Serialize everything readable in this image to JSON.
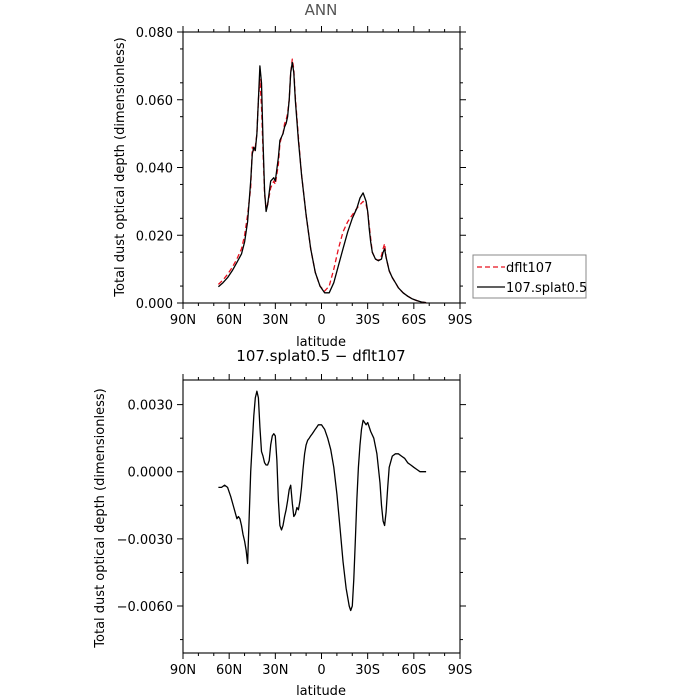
{
  "chart_data": [
    {
      "type": "line",
      "title": "ANN",
      "xlabel": "latitude",
      "ylabel": "Total dust optical depth (dimensionless)",
      "xlim": [
        90,
        -90
      ],
      "ylim": [
        0.0,
        0.08
      ],
      "xticks": [
        90,
        60,
        30,
        0,
        -30,
        -60,
        -90
      ],
      "xtick_labels": [
        "90N",
        "60N",
        "30N",
        "0",
        "30S",
        "60S",
        "90S"
      ],
      "yticks": [
        0.0,
        0.02,
        0.04,
        0.06,
        0.08
      ],
      "ytick_labels": [
        "0.000",
        "0.020",
        "0.040",
        "0.060",
        "0.080"
      ],
      "legend_position": "right",
      "series": [
        {
          "name": "dflt107",
          "color": "#e8101e",
          "dash": "dashed",
          "x": [
            67,
            64,
            61,
            58,
            55,
            52,
            50,
            48,
            46,
            45,
            44,
            43,
            42,
            41,
            40,
            39,
            38,
            37,
            36,
            35,
            33,
            31,
            30,
            28,
            27,
            26,
            25,
            24,
            23,
            22,
            21,
            20,
            19,
            18,
            17,
            15,
            13,
            10,
            7,
            4,
            1,
            -2,
            -5,
            -8,
            -11,
            -14,
            -17,
            -20,
            -23,
            -25,
            -27,
            -29,
            -30,
            -31,
            -32,
            -33,
            -35,
            -37,
            -39,
            -40,
            -41,
            -42,
            -44,
            -46,
            -48,
            -50,
            -53,
            -56,
            -59,
            -62,
            -65,
            -68
          ],
          "y": [
            0.0055,
            0.0068,
            0.0085,
            0.0105,
            0.013,
            0.016,
            0.02,
            0.026,
            0.034,
            0.046,
            0.045,
            0.046,
            0.05,
            0.06,
            0.066,
            0.058,
            0.045,
            0.032,
            0.028,
            0.029,
            0.034,
            0.036,
            0.035,
            0.041,
            0.047,
            0.049,
            0.05,
            0.053,
            0.054,
            0.056,
            0.06,
            0.068,
            0.072,
            0.069,
            0.061,
            0.049,
            0.038,
            0.026,
            0.016,
            0.009,
            0.005,
            0.0035,
            0.005,
            0.01,
            0.016,
            0.021,
            0.024,
            0.026,
            0.028,
            0.029,
            0.03,
            0.029,
            0.027,
            0.023,
            0.019,
            0.015,
            0.013,
            0.0125,
            0.014,
            0.016,
            0.0175,
            0.0135,
            0.0095,
            0.0075,
            0.006,
            0.0045,
            0.003,
            0.002,
            0.0012,
            0.0007,
            0.0003,
            0.0001
          ]
        },
        {
          "name": "107.splat0.5",
          "color": "#000000",
          "dash": "solid",
          "x": [
            67,
            64,
            61,
            58,
            55,
            52,
            50,
            48,
            46,
            45,
            44,
            43,
            42,
            41,
            40,
            39,
            38,
            37,
            36,
            35,
            33,
            31,
            30,
            28,
            27,
            26,
            25,
            24,
            23,
            22,
            21,
            20,
            19,
            18,
            17,
            15,
            13,
            10,
            7,
            4,
            1,
            -2,
            -5,
            -8,
            -11,
            -14,
            -17,
            -20,
            -23,
            -25,
            -27,
            -29,
            -30,
            -31,
            -32,
            -33,
            -35,
            -37,
            -39,
            -40,
            -41,
            -42,
            -44,
            -46,
            -48,
            -50,
            -53,
            -56,
            -59,
            -62,
            -65,
            -68
          ],
          "y": [
            0.0048,
            0.006,
            0.0075,
            0.0095,
            0.012,
            0.0145,
            0.018,
            0.024,
            0.036,
            0.044,
            0.046,
            0.045,
            0.05,
            0.06,
            0.07,
            0.065,
            0.048,
            0.033,
            0.027,
            0.029,
            0.036,
            0.037,
            0.036,
            0.043,
            0.048,
            0.049,
            0.05,
            0.052,
            0.053,
            0.055,
            0.06,
            0.068,
            0.071,
            0.068,
            0.06,
            0.048,
            0.038,
            0.026,
            0.016,
            0.009,
            0.005,
            0.003,
            0.003,
            0.006,
            0.011,
            0.016,
            0.021,
            0.025,
            0.028,
            0.031,
            0.0325,
            0.03,
            0.027,
            0.022,
            0.018,
            0.015,
            0.013,
            0.0125,
            0.013,
            0.015,
            0.016,
            0.0135,
            0.0095,
            0.0075,
            0.006,
            0.0045,
            0.003,
            0.002,
            0.0012,
            0.0007,
            0.0003,
            0.0001
          ]
        }
      ]
    },
    {
      "type": "line",
      "title": "107.splat0.5 − dflt107",
      "xlabel": "latitude",
      "ylabel": "Total dust optical depth (dimensionless)",
      "xlim": [
        90,
        -90
      ],
      "ylim": [
        -0.0081,
        0.0041
      ],
      "xticks": [
        90,
        60,
        30,
        0,
        -30,
        -60,
        -90
      ],
      "xtick_labels": [
        "90N",
        "60N",
        "30N",
        "0",
        "30S",
        "60S",
        "90S"
      ],
      "yticks": [
        0.003,
        0.0,
        -0.003,
        -0.006
      ],
      "ytick_labels": [
        "0.0030",
        "0.0000",
        "−0.0030",
        "−0.0060"
      ],
      "series": [
        {
          "color": "#000000",
          "dash": "solid",
          "x": [
            67,
            65,
            63,
            61,
            59,
            57,
            55,
            54,
            53,
            52,
            51,
            50,
            49,
            48,
            47,
            46,
            45,
            44,
            43,
            42,
            41,
            40,
            39,
            38,
            37,
            36,
            35,
            34,
            33,
            32,
            31,
            30,
            29,
            28,
            27,
            26,
            25,
            24,
            23,
            22,
            21,
            20,
            19,
            18,
            17,
            16,
            15,
            14,
            13,
            12,
            11,
            10,
            9,
            8,
            7,
            6,
            5,
            4,
            3,
            2,
            1,
            0,
            -1,
            -2,
            -4,
            -6,
            -8,
            -10,
            -12,
            -14,
            -16,
            -18,
            -19,
            -20,
            -21,
            -22,
            -23,
            -24,
            -25,
            -26,
            -27,
            -28,
            -29,
            -30,
            -31,
            -32,
            -34,
            -36,
            -38,
            -39,
            -40,
            -41,
            -42,
            -43,
            -44,
            -46,
            -48,
            -50,
            -52,
            -54,
            -56,
            -58,
            -60,
            -62,
            -64,
            -66,
            -68
          ],
          "y": [
            -0.0007,
            -0.0007,
            -0.0006,
            -0.0007,
            -0.0011,
            -0.0016,
            -0.0021,
            -0.002,
            -0.0021,
            -0.0024,
            -0.0028,
            -0.0031,
            -0.0035,
            -0.0041,
            -0.002,
            0.0,
            0.0013,
            0.0025,
            0.0033,
            0.0036,
            0.0033,
            0.002,
            0.0009,
            0.0007,
            0.0004,
            0.0003,
            0.0003,
            0.0005,
            0.0012,
            0.0016,
            0.0017,
            0.0016,
            0.0005,
            -0.0013,
            -0.0024,
            -0.0026,
            -0.0024,
            -0.002,
            -0.0017,
            -0.0013,
            -0.0008,
            -0.0006,
            -0.0014,
            -0.002,
            -0.0019,
            -0.0016,
            -0.0017,
            -0.0013,
            -0.0007,
            0.0001,
            0.0008,
            0.0012,
            0.0014,
            0.0015,
            0.0016,
            0.0017,
            0.0018,
            0.0019,
            0.002,
            0.0021,
            0.0021,
            0.0021,
            0.002,
            0.0019,
            0.0015,
            0.001,
            0.0002,
            -0.001,
            -0.0025,
            -0.004,
            -0.0052,
            -0.006,
            -0.0062,
            -0.006,
            -0.0048,
            -0.003,
            -0.0012,
            0.0002,
            0.0012,
            0.0019,
            0.0023,
            0.0022,
            0.0021,
            0.0022,
            0.002,
            0.0018,
            0.0015,
            0.0008,
            -0.0005,
            -0.0015,
            -0.0022,
            -0.0024,
            -0.0018,
            -0.0007,
            0.0002,
            0.0007,
            0.0008,
            0.0008,
            0.0007,
            0.0006,
            0.0004,
            0.0003,
            0.0002,
            0.0001,
            0.0,
            0.0,
            0.0
          ]
        }
      ]
    }
  ]
}
